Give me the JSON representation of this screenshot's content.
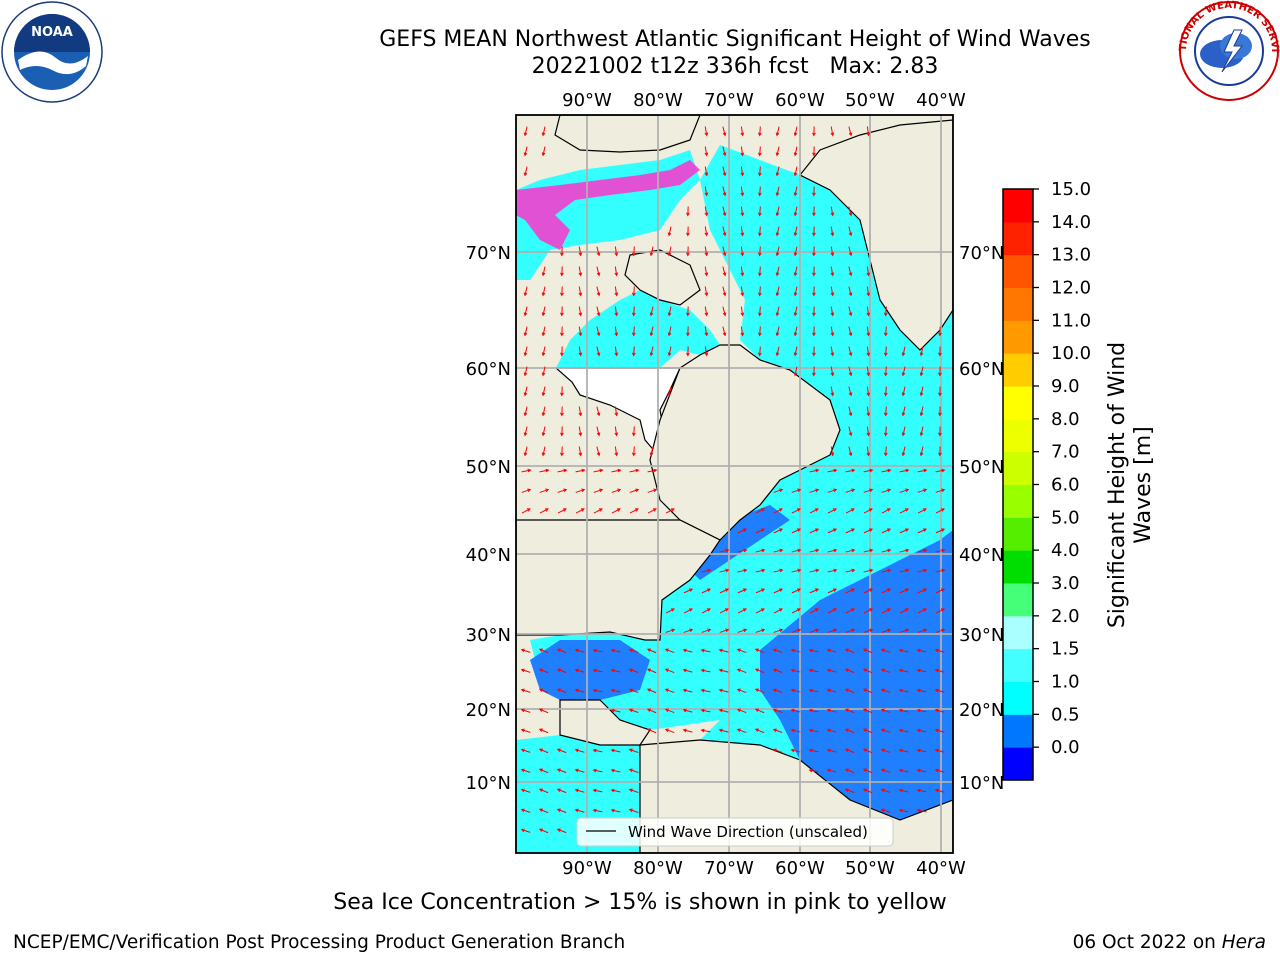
{
  "title_line1": "GEFS MEAN Northwest Atlantic Significant Height of Wind Waves",
  "title_line2": "20221002 t12z 336h fcst   Max: 2.83",
  "map": {
    "lon_range": [
      -100,
      -38
    ],
    "lat_range": [
      0,
      80
    ],
    "lon_ticks": [
      "90°W",
      "80°W",
      "70°W",
      "60°W",
      "50°W",
      "40°W"
    ],
    "lat_ticks": [
      "70°N",
      "60°N",
      "50°N",
      "40°N",
      "30°N",
      "20°N",
      "10°N"
    ],
    "legend_label": "Wind Wave Direction (unscaled)",
    "arrow_color": "#ff0000",
    "land_color": "#eeedde",
    "grid_color": "#b0b0b0"
  },
  "colorbar": {
    "label": "Significant Height of Wind Waves [m]",
    "label_line1": "Significant Height of Wind",
    "label_line2": "Waves [m]",
    "ticks": [
      "15.0",
      "14.0",
      "13.0",
      "12.0",
      "11.0",
      "10.0",
      "9.0",
      "8.0",
      "7.0",
      "6.0",
      "5.0",
      "4.0",
      "3.0",
      "2.0",
      "1.5",
      "1.0",
      "0.5",
      "0.0"
    ],
    "colors": [
      "#0000ff",
      "#0077ff",
      "#00ffff",
      "#44ffff",
      "#aaffff",
      "#44ff77",
      "#00dd00",
      "#55ee00",
      "#99ff00",
      "#ccff00",
      "#eeff00",
      "#ffff00",
      "#ffcc00",
      "#ff9900",
      "#ff7700",
      "#ff5500",
      "#ff2200",
      "#ff0000"
    ]
  },
  "note": "Sea Ice Concentration > 15% is shown in pink to yellow",
  "footer_left": "NCEP/EMC/Verification Post Processing Product Generation Branch",
  "footer_right_date": "06 Oct 2022 on",
  "footer_right_host": "Hera",
  "logos": {
    "noaa_text": "NOAA",
    "nws_text": "NATIONAL WEATHER SERVICE"
  }
}
